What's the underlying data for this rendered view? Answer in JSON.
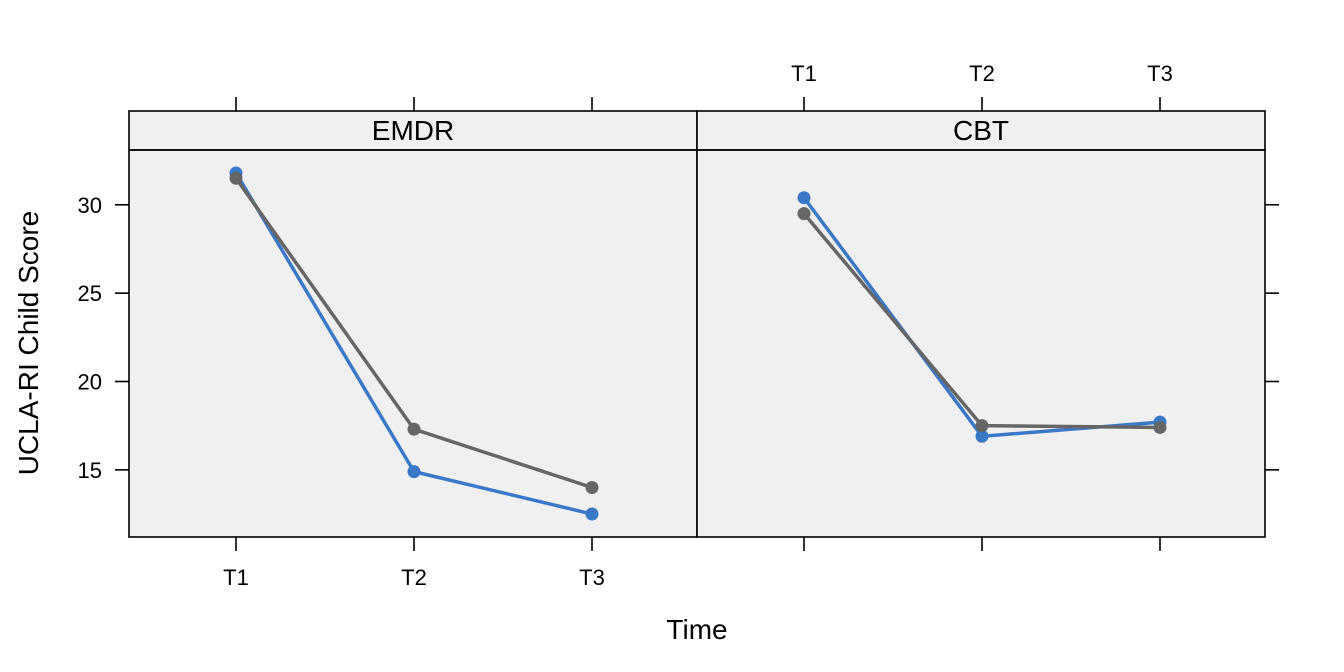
{
  "chart_data": {
    "type": "line",
    "xlabel": "Time",
    "ylabel": "UCLA-RI Child Score",
    "categories": [
      "T1",
      "T2",
      "T3"
    ],
    "ylim": [
      11.2,
      33.1
    ],
    "yticks": [
      15,
      20,
      25,
      30
    ],
    "grid": false,
    "legend": "none",
    "colors": {
      "series_blue": "#3a78c8",
      "series_gray": "#666666",
      "panel_bg": "#f0f0f0",
      "strip_bg": "#f0f0f0"
    },
    "panels": [
      {
        "strip": "EMDR",
        "series": [
          {
            "color": "#3a78c8",
            "values": [
              31.8,
              14.9,
              12.5
            ]
          },
          {
            "color": "#666666",
            "values": [
              31.5,
              17.3,
              14.0
            ]
          }
        ]
      },
      {
        "strip": "CBT",
        "series": [
          {
            "color": "#3a78c8",
            "values": [
              30.4,
              16.9,
              17.7
            ]
          },
          {
            "color": "#666666",
            "values": [
              29.5,
              17.5,
              17.4
            ]
          }
        ]
      }
    ]
  }
}
